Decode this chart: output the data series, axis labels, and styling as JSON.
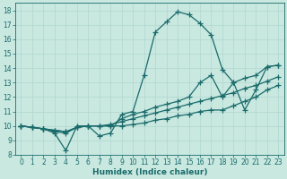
{
  "xlabel": "Humidex (Indice chaleur)",
  "xlim": [
    -0.5,
    23.5
  ],
  "ylim": [
    8,
    18.5
  ],
  "yticks": [
    8,
    9,
    10,
    11,
    12,
    13,
    14,
    15,
    16,
    17,
    18
  ],
  "xticks": [
    0,
    1,
    2,
    3,
    4,
    5,
    6,
    7,
    8,
    9,
    10,
    11,
    12,
    13,
    14,
    15,
    16,
    17,
    18,
    19,
    20,
    21,
    22,
    23
  ],
  "bg_color": "#c8e8e0",
  "line_color": "#1a6b6b",
  "grid_color": "#b0d8d0",
  "lines": [
    {
      "x": [
        0,
        1,
        2,
        3,
        4,
        5,
        6,
        7,
        8,
        9,
        10,
        11,
        12,
        13,
        14,
        15,
        16,
        17,
        18,
        19,
        20,
        21,
        22,
        23
      ],
      "y": [
        10.0,
        9.9,
        9.8,
        9.5,
        8.3,
        10.0,
        10.0,
        9.3,
        9.5,
        10.8,
        11.0,
        13.5,
        16.5,
        17.2,
        17.9,
        17.7,
        17.1,
        16.3,
        13.9,
        13.0,
        11.1,
        12.5,
        14.1,
        14.2
      ]
    },
    {
      "x": [
        0,
        1,
        2,
        3,
        4,
        5,
        6,
        7,
        8,
        9,
        10,
        11,
        12,
        13,
        14,
        15,
        16,
        17,
        18,
        19,
        20,
        21,
        22,
        23
      ],
      "y": [
        10.0,
        9.9,
        9.8,
        9.6,
        9.5,
        9.9,
        10.0,
        10.0,
        10.0,
        10.5,
        10.8,
        11.0,
        11.3,
        11.5,
        11.7,
        12.0,
        13.0,
        13.5,
        12.0,
        13.0,
        13.3,
        13.5,
        14.1,
        14.2
      ]
    },
    {
      "x": [
        0,
        1,
        2,
        3,
        4,
        5,
        6,
        7,
        8,
        9,
        10,
        11,
        12,
        13,
        14,
        15,
        16,
        17,
        18,
        19,
        20,
        21,
        22,
        23
      ],
      "y": [
        10.0,
        9.9,
        9.8,
        9.7,
        9.6,
        9.9,
        10.0,
        10.0,
        10.1,
        10.3,
        10.5,
        10.7,
        10.9,
        11.1,
        11.3,
        11.5,
        11.7,
        11.9,
        12.1,
        12.3,
        12.6,
        12.8,
        13.1,
        13.4
      ]
    },
    {
      "x": [
        0,
        1,
        2,
        3,
        4,
        5,
        6,
        7,
        8,
        9,
        10,
        11,
        12,
        13,
        14,
        15,
        16,
        17,
        18,
        19,
        20,
        21,
        22,
        23
      ],
      "y": [
        10.0,
        9.9,
        9.8,
        9.7,
        9.6,
        9.9,
        10.0,
        10.0,
        10.0,
        10.0,
        10.1,
        10.2,
        10.4,
        10.5,
        10.7,
        10.8,
        11.0,
        11.1,
        11.1,
        11.4,
        11.7,
        12.0,
        12.5,
        12.8
      ]
    }
  ],
  "marker": "+",
  "markersize": 4,
  "linewidth": 0.9,
  "tick_fontsize": 5.5,
  "label_fontsize": 6.5
}
